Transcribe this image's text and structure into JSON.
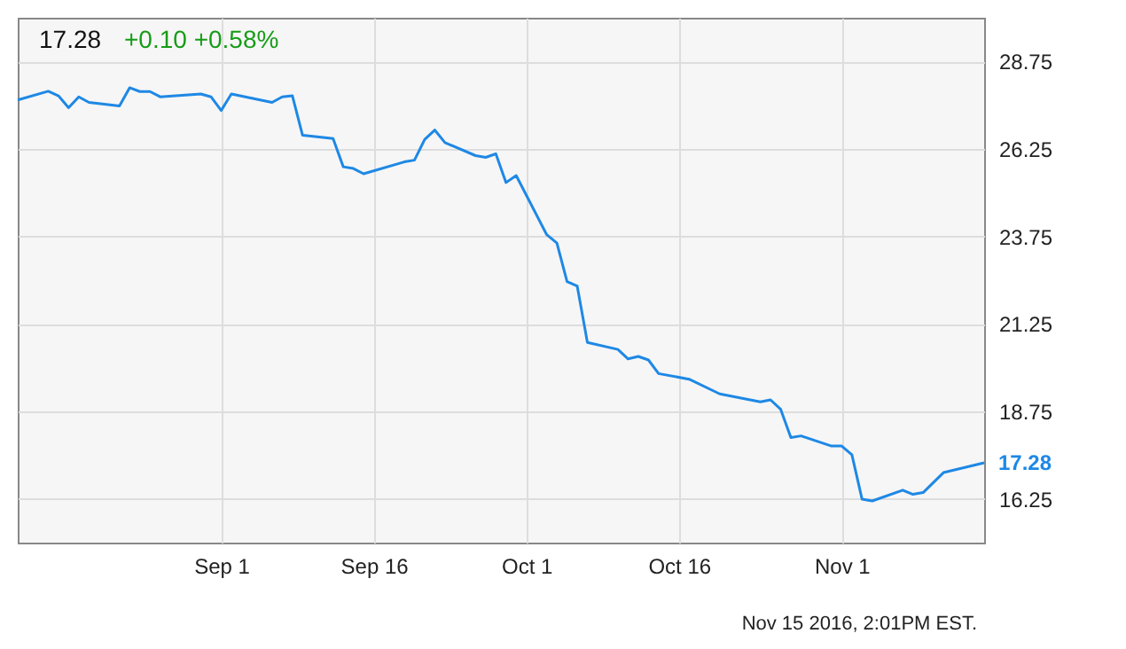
{
  "chart_data": {
    "type": "line",
    "title": "17.28",
    "subtitle": "+0.10 +0.58%",
    "x": [
      "2016-08-12",
      "2016-08-15",
      "2016-08-16",
      "2016-08-17",
      "2016-08-18",
      "2016-08-19",
      "2016-08-22",
      "2016-08-23",
      "2016-08-24",
      "2016-08-25",
      "2016-08-26",
      "2016-08-30",
      "2016-08-31",
      "2016-09-01",
      "2016-09-02",
      "2016-09-06",
      "2016-09-07",
      "2016-09-08",
      "2016-09-09",
      "2016-09-12",
      "2016-09-13",
      "2016-09-14",
      "2016-09-15",
      "2016-09-19",
      "2016-09-20",
      "2016-09-21",
      "2016-09-22",
      "2016-09-23",
      "2016-09-26",
      "2016-09-27",
      "2016-09-28",
      "2016-09-29",
      "2016-09-30",
      "2016-10-03",
      "2016-10-04",
      "2016-10-05",
      "2016-10-06",
      "2016-10-07",
      "2016-10-10",
      "2016-10-11",
      "2016-10-12",
      "2016-10-13",
      "2016-10-14",
      "2016-10-17",
      "2016-10-20",
      "2016-10-24",
      "2016-10-25",
      "2016-10-26",
      "2016-10-27",
      "2016-10-28",
      "2016-10-31",
      "2016-11-01",
      "2016-11-02",
      "2016-11-03",
      "2016-11-04",
      "2016-11-07",
      "2016-11-08",
      "2016-11-09",
      "2016-11-11",
      "2016-11-15"
    ],
    "series": [
      {
        "color": "#1e88e5",
        "values": [
          27.65,
          27.9,
          27.77,
          27.43,
          27.74,
          27.58,
          27.48,
          28.0,
          27.89,
          27.89,
          27.74,
          27.82,
          27.74,
          27.35,
          27.82,
          27.58,
          27.74,
          27.77,
          26.64,
          26.55,
          25.74,
          25.69,
          25.54,
          25.88,
          25.93,
          26.52,
          26.79,
          26.43,
          26.06,
          26.01,
          26.11,
          25.29,
          25.49,
          23.8,
          23.56,
          22.46,
          22.33,
          20.72,
          20.52,
          20.25,
          20.32,
          20.22,
          19.83,
          19.67,
          19.25,
          19.02,
          19.08,
          18.81,
          18.0,
          18.05,
          17.76,
          17.76,
          17.51,
          16.24,
          16.19,
          16.5,
          16.38,
          16.43,
          17.0,
          17.28
        ]
      }
    ],
    "xlim": [
      "2016-08-12",
      "2016-11-15"
    ],
    "xticks": [
      {
        "value": "2016-09-01",
        "label": "Sep 1"
      },
      {
        "value": "2016-09-16",
        "label": "Sep 16"
      },
      {
        "value": "2016-10-01",
        "label": "Oct 1"
      },
      {
        "value": "2016-10-16",
        "label": "Oct 16"
      },
      {
        "value": "2016-11-01",
        "label": "Nov 1"
      }
    ],
    "ylim": [
      15,
      30
    ],
    "yticks": [
      16.25,
      18.75,
      21.25,
      23.75,
      26.25,
      28.75
    ],
    "grid": true,
    "marker": "none",
    "line_style": "solid",
    "annotations": [
      {
        "text": "17.28",
        "x": "2016-11-15",
        "y": 17.28
      },
      "Nov 15 2016, 2:01PM EST."
    ]
  }
}
